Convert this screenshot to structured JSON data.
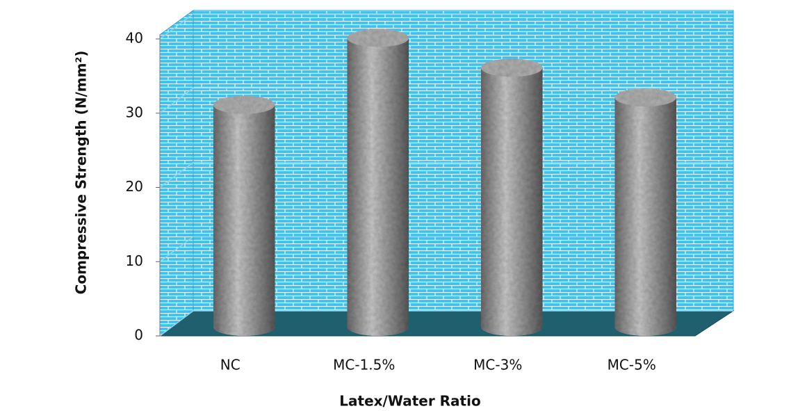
{
  "chart_data": {
    "type": "bar",
    "x_label": "Latex/Water Ratio",
    "y_label": "Compressive Strength (N/mm²)",
    "categories": [
      "NC",
      "MC-1.5%",
      "MC-3%",
      "MC-5%"
    ],
    "values": [
      30,
      39,
      35,
      31
    ],
    "ylim": [
      0,
      40
    ],
    "yticks": [
      0,
      10,
      20,
      30,
      40
    ],
    "grid": true,
    "color": "#9a9a9a"
  }
}
